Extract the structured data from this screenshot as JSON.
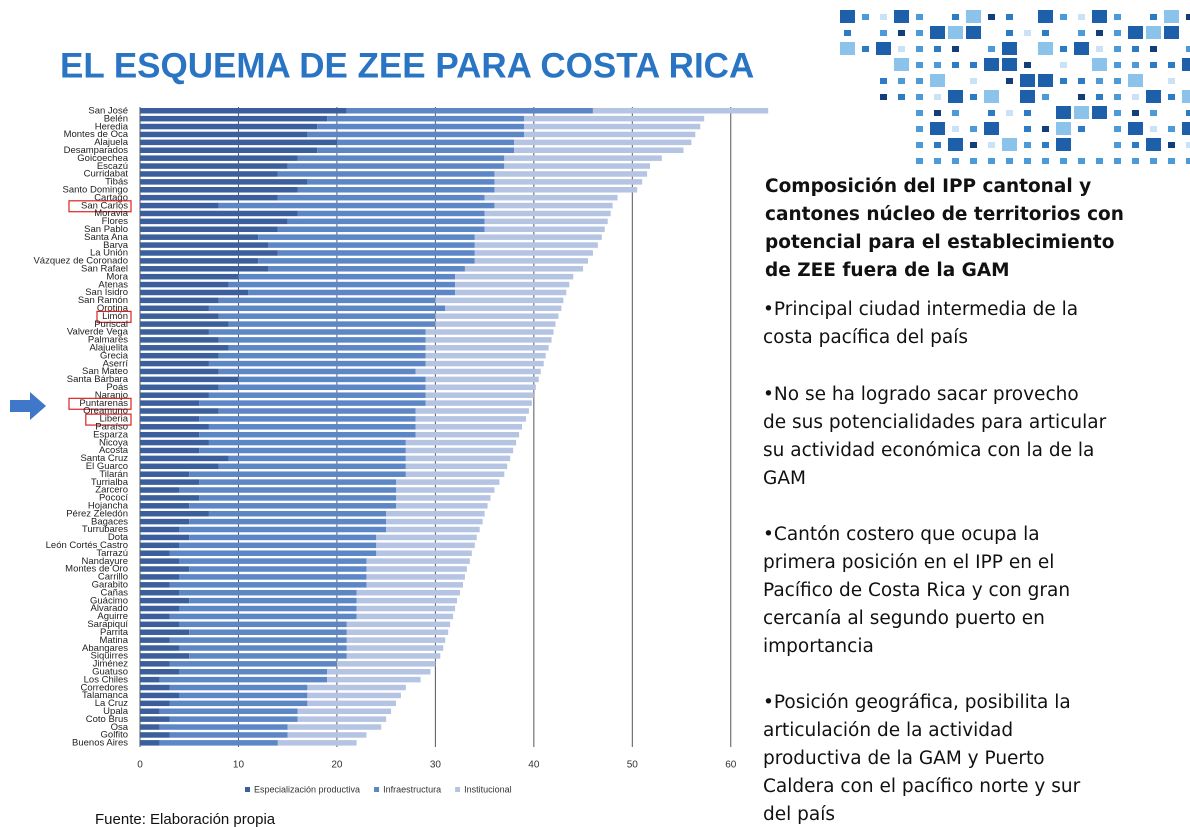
{
  "title": "EL ESQUEMA DE ZEE PARA COSTA RICA",
  "panel": {
    "heading": [
      "Composición del IPP cantonal y",
      "cantones núcleo de territorios con",
      "potencial para el establecimiento",
      "de ZEE fuera de la GAM"
    ],
    "bullets": [
      [
        "•Principal ciudad intermedia de la",
        "costa pacífica del país"
      ],
      [
        "•No se ha logrado sacar provecho",
        "de sus potencialidades para articular",
        "su actividad económica con la de la",
        "GAM"
      ],
      [
        "•Cantón costero que ocupa la",
        "primera posición en el IPP en el",
        "Pacífico de Costa Rica y con gran",
        "cercanía al segundo puerto en",
        "importancia"
      ],
      [
        "•Posición geográfica, posibilita la",
        "articulación de la actividad",
        "productiva de la GAM y Puerto",
        "Caldera con el pacífico norte y sur",
        "del país"
      ]
    ]
  },
  "source": "Fuente: Elaboración propia",
  "chart_data": {
    "type": "bar",
    "orientation": "horizontal",
    "stacked": true,
    "grid": true,
    "legend": "bottom",
    "categories": [
      "San José",
      "Belén",
      "Heredia",
      "Montes de Oca",
      "Alajuela",
      "Desamparados",
      "Goicoechea",
      "Escazú",
      "Curridabat",
      "Tibás",
      "Santo Domingo",
      "Cartago",
      "San Carlos",
      "Moravia",
      "Flores",
      "San Pablo",
      "Santa Ana",
      "Barva",
      "La Unión",
      "Vázquez de Coronado",
      "San Rafael",
      "Mora",
      "Atenas",
      "San Isidro",
      "San Ramón",
      "Orotina",
      "Limón",
      "Puriscal",
      "Valverde Vega",
      "Palmares",
      "Alajuelita",
      "Grecia",
      "Aserrí",
      "San Mateo",
      "Santa Bárbara",
      "Poás",
      "Naranjo",
      "Puntarenas",
      "Oreamuno",
      "Liberia",
      "Paraíso",
      "Esparza",
      "Nicoya",
      "Acosta",
      "Santa Cruz",
      "El Guarco",
      "Tilarán",
      "Turrialba",
      "Zarcero",
      "Pococí",
      "Hojancha",
      "Pérez Zeledón",
      "Bagaces",
      "Turrubares",
      "Dota",
      "León Cortés Castro",
      "Tarrazú",
      "Nandayure",
      "Montes de Oro",
      "Carrillo",
      "Garabito",
      "Cañas",
      "Guácimo",
      "Alvarado",
      "Aguirre",
      "Sarapiquí",
      "Parrita",
      "Matina",
      "Abangares",
      "Siquirres",
      "Jiménez",
      "Guatuso",
      "Los Chiles",
      "Corredores",
      "Talamanca",
      "La Cruz",
      "Upala",
      "Coto Brus",
      "Osa",
      "Golfito",
      "Buenos Aires"
    ],
    "highlight": [
      "San Carlos",
      "Limón",
      "Puntarenas",
      "Liberia"
    ],
    "series": [
      {
        "name": "Especialización productiva",
        "color": "#3b5f9c",
        "values": [
          21,
          19,
          18,
          17,
          20,
          18,
          16,
          15,
          14,
          17,
          16,
          14,
          8,
          16,
          15,
          14,
          12,
          13,
          14,
          12,
          13,
          10,
          9,
          11,
          8,
          7,
          8,
          9,
          7,
          8,
          9,
          8,
          7,
          8,
          10,
          8,
          7,
          6,
          8,
          6,
          7,
          6,
          7,
          6,
          9,
          8,
          5,
          6,
          4,
          6,
          5,
          7,
          5,
          4,
          5,
          4,
          3,
          4,
          5,
          4,
          3,
          4,
          5,
          4,
          3,
          4,
          5,
          3,
          4,
          5,
          3,
          4,
          2,
          3,
          4,
          3,
          2,
          3,
          2,
          3,
          2
        ]
      },
      {
        "name": "Infraestructura",
        "color": "#5c86c6",
        "values": [
          25,
          20,
          21,
          22,
          18,
          20,
          21,
          22,
          22,
          19,
          20,
          21,
          28,
          19,
          20,
          21,
          22,
          21,
          20,
          22,
          20,
          22,
          23,
          21,
          22,
          24,
          22,
          21,
          22,
          21,
          20,
          21,
          22,
          20,
          19,
          21,
          22,
          23,
          20,
          22,
          21,
          22,
          20,
          21,
          18,
          19,
          22,
          20,
          22,
          20,
          21,
          18,
          20,
          21,
          19,
          20,
          21,
          19,
          18,
          19,
          20,
          18,
          17,
          18,
          19,
          17,
          16,
          18,
          17,
          16,
          17,
          15,
          17,
          14,
          13,
          14,
          14,
          13,
          13,
          12,
          12
        ]
      },
      {
        "name": "Institucional",
        "color": "#b5c4e2",
        "values": [
          17.8,
          18.3,
          17.9,
          17.4,
          18,
          17.2,
          16,
          14.8,
          15.5,
          15,
          14.5,
          13.5,
          12,
          12.8,
          12.5,
          12.2,
          12.9,
          12.5,
          12,
          11.5,
          12,
          12,
          11.6,
          11.3,
          13,
          11.8,
          12.5,
          12.2,
          13,
          12.8,
          12.5,
          12.2,
          12,
          12.7,
          11.5,
          11.2,
          11,
          10.8,
          11.5,
          11.2,
          10.8,
          10.5,
          11.2,
          10.9,
          10.6,
          10.3,
          10,
          10.5,
          10,
          9.6,
          9.3,
          10,
          9.8,
          9.5,
          10.2,
          10,
          9.7,
          10.5,
          10.2,
          10,
          9.8,
          10.5,
          10.2,
          10,
          9.8,
          10.5,
          10.3,
          10,
          9.8,
          9.5,
          10,
          10.5,
          9.5,
          10,
          9.5,
          9,
          9.5,
          9,
          9.5,
          8,
          8
        ]
      }
    ],
    "xlim": [
      0,
      65
    ],
    "xticks": [
      0,
      10,
      20,
      30,
      40,
      50,
      60
    ]
  }
}
